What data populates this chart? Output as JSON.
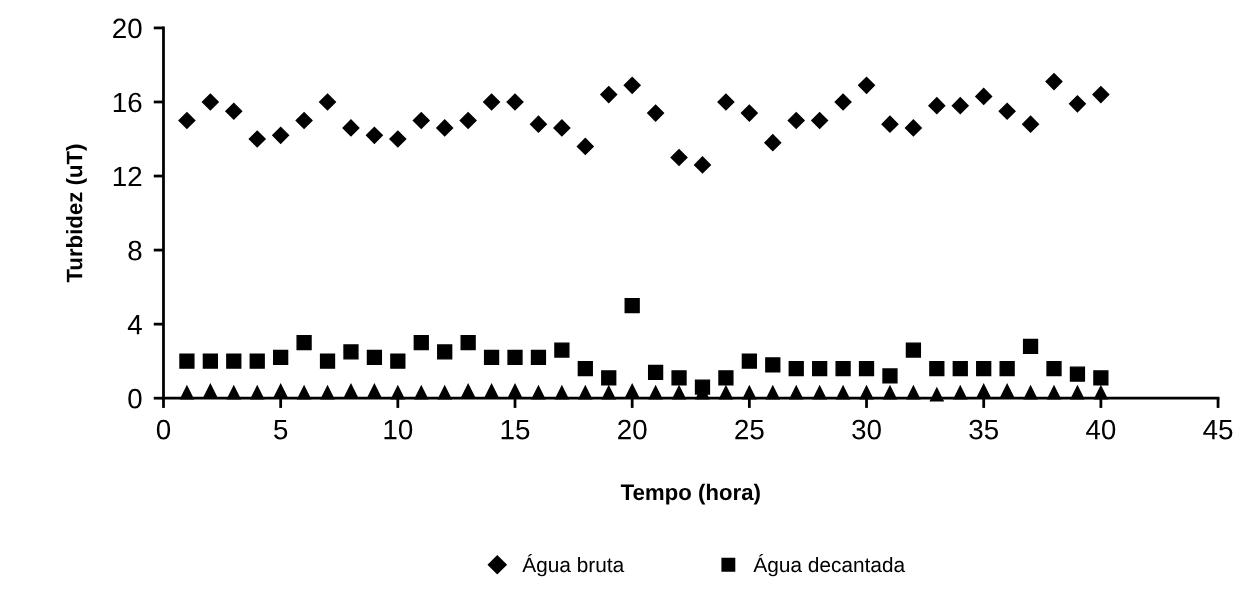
{
  "chart_data": {
    "type": "scatter",
    "xlabel": "Tempo (hora)",
    "ylabel": "Turbidez (uT)",
    "x": [
      1,
      2,
      3,
      4,
      5,
      6,
      7,
      8,
      9,
      10,
      11,
      12,
      13,
      14,
      15,
      16,
      17,
      18,
      19,
      20,
      21,
      22,
      23,
      24,
      25,
      26,
      27,
      28,
      29,
      30,
      31,
      32,
      33,
      34,
      35,
      36,
      37,
      38,
      39,
      40
    ],
    "series": [
      {
        "name": "Água bruta",
        "color": "#000000",
        "marker": "diamond",
        "values": [
          15,
          16,
          15.5,
          14,
          14.2,
          15,
          16,
          14.6,
          14.2,
          14,
          15,
          14.6,
          15,
          16,
          16,
          14.8,
          14.6,
          13.6,
          16.4,
          16.9,
          15.4,
          13,
          12.6,
          16,
          15.4,
          13.8,
          15,
          15,
          16,
          16.9,
          14.8,
          14.6,
          15.8,
          15.8,
          16.3,
          15.5,
          14.8,
          17.1,
          15.9,
          16.4
        ]
      },
      {
        "name": "Água decantada",
        "color": "#000000",
        "marker": "square",
        "values": [
          2,
          2,
          2,
          2,
          2.2,
          3,
          2,
          2.5,
          2.2,
          2,
          3,
          2.5,
          3,
          2.2,
          2.2,
          2.2,
          2.6,
          1.6,
          1.1,
          5,
          1.4,
          1.1,
          0.6,
          1.1,
          2,
          1.8,
          1.6,
          1.6,
          1.6,
          1.6,
          1.2,
          2.6,
          1.6,
          1.6,
          1.6,
          1.6,
          2.8,
          1.6,
          1.3,
          1.1
        ]
      },
      {
        "color": "#000000",
        "marker": "triangle",
        "values": [
          0.3,
          0.4,
          0.3,
          0.3,
          0.4,
          0.3,
          0.3,
          0.4,
          0.4,
          0.3,
          0.3,
          0.3,
          0.4,
          0.4,
          0.4,
          0.3,
          0.3,
          0.3,
          0.3,
          0.4,
          0.3,
          0.3,
          0.3,
          0.3,
          0.3,
          0.3,
          0.3,
          0.3,
          0.3,
          0.3,
          0.3,
          0.3,
          0.2,
          0.3,
          0.4,
          0.4,
          0.3,
          0.3,
          0.3,
          0.3
        ]
      }
    ],
    "xlim": [
      0,
      45
    ],
    "xticks": [
      0,
      5,
      10,
      15,
      20,
      25,
      30,
      35,
      40,
      45
    ],
    "ylim": [
      0,
      20
    ],
    "yticks": [
      0,
      4,
      8,
      12,
      16,
      20
    ],
    "grid": false,
    "legend": "bottom"
  }
}
